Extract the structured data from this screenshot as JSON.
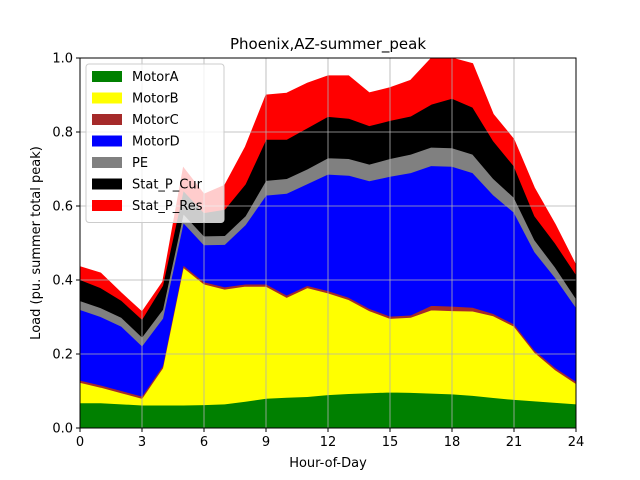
{
  "chart_data": {
    "type": "area",
    "stacked": true,
    "title": "Phoenix,AZ-summer_peak",
    "xlabel": "Hour-of-Day",
    "ylabel": "Load (pu. summer total peak)",
    "xlim": [
      0,
      24
    ],
    "ylim": [
      0,
      1.0
    ],
    "xticks": [
      0,
      3,
      6,
      9,
      12,
      15,
      18,
      21,
      24
    ],
    "xtick_labels": [
      "0",
      "3",
      "6",
      "9",
      "12",
      "15",
      "18",
      "21",
      "24"
    ],
    "yticks": [
      0,
      0.2,
      0.4,
      0.6,
      0.8,
      1.0
    ],
    "ytick_labels": [
      "0.0",
      "0.2",
      "0.4",
      "0.6",
      "0.8",
      "1.0"
    ],
    "grid": true,
    "legend_position": "top-left",
    "x": [
      0,
      1,
      2,
      3,
      4,
      5,
      6,
      7,
      8,
      9,
      10,
      11,
      12,
      13,
      14,
      15,
      16,
      17,
      18,
      19,
      20,
      21,
      22,
      23,
      24
    ],
    "series": [
      {
        "name": "MotorA",
        "color": "#008000",
        "values": [
          0.068,
          0.068,
          0.065,
          0.062,
          0.062,
          0.062,
          0.063,
          0.065,
          0.072,
          0.08,
          0.083,
          0.085,
          0.09,
          0.093,
          0.095,
          0.097,
          0.096,
          0.094,
          0.092,
          0.088,
          0.082,
          0.077,
          0.073,
          0.069,
          0.065
        ]
      },
      {
        "name": "MotorB",
        "color": "#ffff00",
        "values": [
          0.055,
          0.042,
          0.03,
          0.018,
          0.1,
          0.372,
          0.326,
          0.31,
          0.311,
          0.303,
          0.27,
          0.294,
          0.275,
          0.254,
          0.222,
          0.199,
          0.203,
          0.225,
          0.225,
          0.228,
          0.221,
          0.198,
          0.131,
          0.088,
          0.055
        ]
      },
      {
        "name": "MotorC",
        "color": "#a52a2a",
        "values": [
          0.006,
          0.006,
          0.006,
          0.006,
          0.006,
          0.006,
          0.006,
          0.006,
          0.006,
          0.006,
          0.006,
          0.006,
          0.006,
          0.006,
          0.006,
          0.006,
          0.006,
          0.012,
          0.012,
          0.01,
          0.006,
          0.006,
          0.006,
          0.006,
          0.006
        ]
      },
      {
        "name": "MotorD",
        "color": "#0000ff",
        "values": [
          0.191,
          0.185,
          0.174,
          0.136,
          0.128,
          0.115,
          0.1,
          0.115,
          0.16,
          0.24,
          0.275,
          0.275,
          0.315,
          0.33,
          0.345,
          0.378,
          0.385,
          0.378,
          0.378,
          0.364,
          0.321,
          0.302,
          0.266,
          0.243,
          0.2
        ]
      },
      {
        "name": "PE",
        "color": "#808080",
        "values": [
          0.024,
          0.024,
          0.024,
          0.024,
          0.024,
          0.024,
          0.024,
          0.024,
          0.024,
          0.04,
          0.04,
          0.04,
          0.044,
          0.045,
          0.045,
          0.048,
          0.05,
          0.05,
          0.05,
          0.05,
          0.044,
          0.04,
          0.032,
          0.028,
          0.024
        ]
      },
      {
        "name": "Stat_P_Cur",
        "color": "#000000",
        "values": [
          0.057,
          0.054,
          0.046,
          0.048,
          0.065,
          0.063,
          0.063,
          0.071,
          0.086,
          0.111,
          0.106,
          0.111,
          0.112,
          0.109,
          0.104,
          0.103,
          0.103,
          0.116,
          0.134,
          0.127,
          0.102,
          0.085,
          0.065,
          0.065,
          0.065
        ]
      },
      {
        "name": "Stat_P_Res",
        "color": "#ff0000",
        "values": [
          0.035,
          0.04,
          0.02,
          0.02,
          0.01,
          0.062,
          0.05,
          0.065,
          0.101,
          0.12,
          0.125,
          0.121,
          0.11,
          0.115,
          0.089,
          0.089,
          0.097,
          0.125,
          0.109,
          0.118,
          0.072,
          0.072,
          0.075,
          0.051,
          0.025
        ]
      }
    ]
  }
}
